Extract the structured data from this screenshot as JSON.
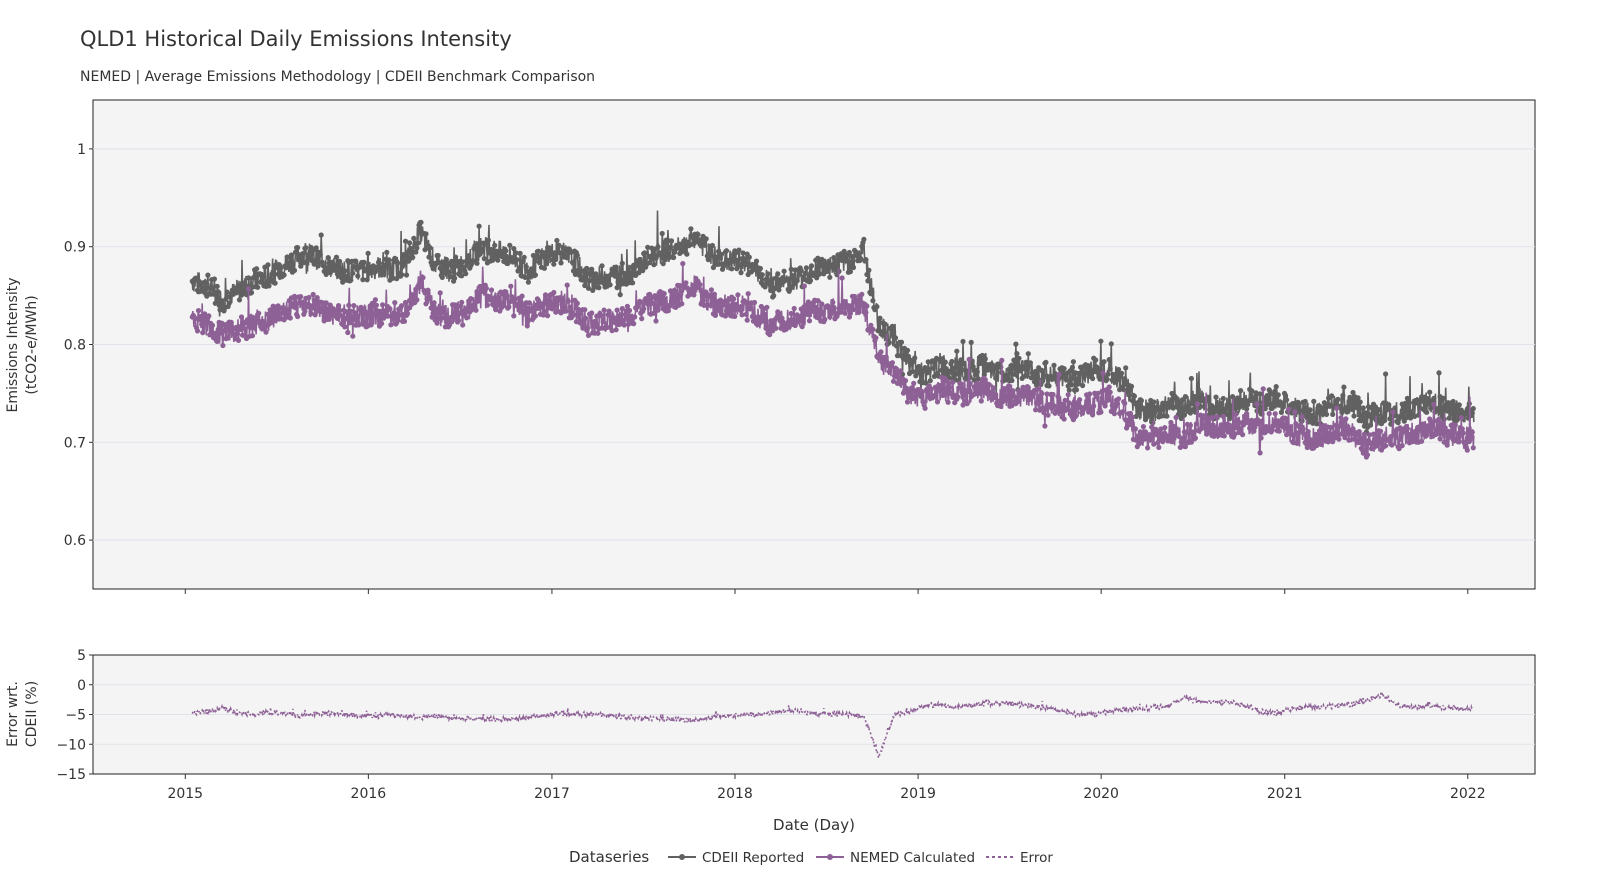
{
  "header": {
    "title": "QLD1 Historical Daily Emissions Intensity",
    "subtitle": "NEMED | Average Emissions Methodology | CDEII Benchmark Comparison"
  },
  "colors": {
    "cdeii": "#616161",
    "nemed": "#8e6196",
    "error": "#8e6196",
    "panel_bg": "#f4f4f4",
    "grid": "#e1e1ea"
  },
  "chart_data": [
    {
      "type": "line",
      "panel": "top",
      "ylabel_line1": "Emissions Intensity",
      "ylabel_line2": "(tCO2-e/MWh)",
      "ylim": [
        0.55,
        1.05
      ],
      "yticks": [
        1,
        0.9,
        0.8,
        0.7,
        0.6
      ],
      "ytick_labels": [
        "1",
        "0.9",
        "0.8",
        "0.7",
        "0.6"
      ],
      "xlim": [
        "2014-07-01",
        "2022-05-15"
      ],
      "grid": true,
      "x": [
        "2015-01",
        "2015-02",
        "2015-03",
        "2015-04",
        "2015-05",
        "2015-06",
        "2015-07",
        "2015-08",
        "2015-09",
        "2015-10",
        "2015-11",
        "2015-12",
        "2016-01",
        "2016-02",
        "2016-03",
        "2016-04",
        "2016-05",
        "2016-06",
        "2016-07",
        "2016-08",
        "2016-09",
        "2016-10",
        "2016-11",
        "2016-12",
        "2017-01",
        "2017-02",
        "2017-03",
        "2017-04",
        "2017-05",
        "2017-06",
        "2017-07",
        "2017-08",
        "2017-09",
        "2017-10",
        "2017-11",
        "2017-12",
        "2018-01",
        "2018-02",
        "2018-03",
        "2018-04",
        "2018-05",
        "2018-06",
        "2018-07",
        "2018-08",
        "2018-09",
        "2018-10",
        "2018-11",
        "2018-12",
        "2019-01",
        "2019-02",
        "2019-03",
        "2019-04",
        "2019-05",
        "2019-06",
        "2019-07",
        "2019-08",
        "2019-09",
        "2019-10",
        "2019-11",
        "2019-12",
        "2020-01",
        "2020-02",
        "2020-03",
        "2020-04",
        "2020-05",
        "2020-06",
        "2020-07",
        "2020-08",
        "2020-09",
        "2020-10",
        "2020-11",
        "2020-12",
        "2021-01",
        "2021-02",
        "2021-03",
        "2021-04",
        "2021-05",
        "2021-06",
        "2021-07",
        "2021-08",
        "2021-09",
        "2021-10",
        "2021-11",
        "2021-12"
      ],
      "series": [
        {
          "name": "CDEII Reported",
          "values": [
            0.865,
            0.86,
            0.845,
            0.855,
            0.865,
            0.87,
            0.88,
            0.89,
            0.89,
            0.88,
            0.875,
            0.875,
            0.88,
            0.875,
            0.885,
            0.915,
            0.88,
            0.875,
            0.885,
            0.9,
            0.895,
            0.89,
            0.875,
            0.89,
            0.895,
            0.885,
            0.865,
            0.87,
            0.87,
            0.875,
            0.89,
            0.895,
            0.9,
            0.91,
            0.89,
            0.885,
            0.885,
            0.875,
            0.86,
            0.865,
            0.87,
            0.88,
            0.88,
            0.885,
            0.895,
            0.82,
            0.805,
            0.78,
            0.77,
            0.78,
            0.775,
            0.77,
            0.78,
            0.77,
            0.775,
            0.77,
            0.77,
            0.765,
            0.765,
            0.775,
            0.775,
            0.76,
            0.735,
            0.73,
            0.74,
            0.735,
            0.745,
            0.735,
            0.735,
            0.745,
            0.74,
            0.745,
            0.735,
            0.73,
            0.73,
            0.74,
            0.74,
            0.725,
            0.73,
            0.73,
            0.735,
            0.74,
            0.735,
            0.73
          ]
        },
        {
          "name": "NEMED Calculated",
          "values": [
            0.825,
            0.82,
            0.81,
            0.815,
            0.82,
            0.825,
            0.835,
            0.84,
            0.84,
            0.83,
            0.83,
            0.83,
            0.83,
            0.83,
            0.835,
            0.865,
            0.83,
            0.83,
            0.835,
            0.85,
            0.845,
            0.84,
            0.83,
            0.84,
            0.845,
            0.835,
            0.82,
            0.825,
            0.825,
            0.83,
            0.84,
            0.845,
            0.85,
            0.86,
            0.84,
            0.84,
            0.84,
            0.83,
            0.82,
            0.825,
            0.83,
            0.835,
            0.835,
            0.84,
            0.84,
            0.785,
            0.77,
            0.75,
            0.745,
            0.755,
            0.75,
            0.75,
            0.755,
            0.745,
            0.75,
            0.745,
            0.74,
            0.735,
            0.735,
            0.74,
            0.745,
            0.73,
            0.705,
            0.705,
            0.71,
            0.705,
            0.72,
            0.715,
            0.715,
            0.72,
            0.715,
            0.72,
            0.71,
            0.705,
            0.705,
            0.715,
            0.71,
            0.695,
            0.705,
            0.705,
            0.71,
            0.715,
            0.71,
            0.705
          ]
        }
      ]
    },
    {
      "type": "line",
      "panel": "bottom",
      "ylabel_line1": "Error wrt.",
      "ylabel_line2": "CDEII (%)",
      "xlabel": "Date (Day)",
      "ylim": [
        -15,
        5
      ],
      "yticks": [
        5,
        0,
        -5,
        -10,
        -15
      ],
      "ytick_labels": [
        "5",
        "0",
        "−5",
        "−10",
        "−15"
      ],
      "xlim": [
        "2014-07-01",
        "2022-05-15"
      ],
      "xticks": [
        "2015-01-01",
        "2016-01-01",
        "2017-01-01",
        "2018-01-01",
        "2019-01-01",
        "2020-01-01",
        "2021-01-01",
        "2022-01-01"
      ],
      "xtick_labels": [
        "2015",
        "2016",
        "2017",
        "2018",
        "2019",
        "2020",
        "2021",
        "2022"
      ],
      "grid": true,
      "x": [
        "2015-01",
        "2015-02",
        "2015-03",
        "2015-04",
        "2015-05",
        "2015-06",
        "2015-07",
        "2015-08",
        "2015-09",
        "2015-10",
        "2015-11",
        "2015-12",
        "2016-01",
        "2016-02",
        "2016-03",
        "2016-04",
        "2016-05",
        "2016-06",
        "2016-07",
        "2016-08",
        "2016-09",
        "2016-10",
        "2016-11",
        "2016-12",
        "2017-01",
        "2017-02",
        "2017-03",
        "2017-04",
        "2017-05",
        "2017-06",
        "2017-07",
        "2017-08",
        "2017-09",
        "2017-10",
        "2017-11",
        "2017-12",
        "2018-01",
        "2018-02",
        "2018-03",
        "2018-04",
        "2018-05",
        "2018-06",
        "2018-07",
        "2018-08",
        "2018-09",
        "2018-10",
        "2018-11",
        "2018-12",
        "2019-01",
        "2019-02",
        "2019-03",
        "2019-04",
        "2019-05",
        "2019-06",
        "2019-07",
        "2019-08",
        "2019-09",
        "2019-10",
        "2019-11",
        "2019-12",
        "2020-01",
        "2020-02",
        "2020-03",
        "2020-04",
        "2020-05",
        "2020-06",
        "2020-07",
        "2020-08",
        "2020-09",
        "2020-10",
        "2020-11",
        "2020-12",
        "2021-01",
        "2021-02",
        "2021-03",
        "2021-04",
        "2021-05",
        "2021-06",
        "2021-07",
        "2021-08",
        "2021-09",
        "2021-10",
        "2021-11",
        "2021-12"
      ],
      "series": [
        {
          "name": "Error",
          "values": [
            -4.8,
            -4.5,
            -4.0,
            -4.7,
            -5.0,
            -4.6,
            -4.8,
            -5.2,
            -5.0,
            -4.7,
            -5.0,
            -5.2,
            -5.3,
            -5.0,
            -5.3,
            -5.5,
            -5.2,
            -5.6,
            -5.6,
            -5.8,
            -5.7,
            -5.9,
            -5.5,
            -5.2,
            -4.8,
            -5.0,
            -5.0,
            -5.0,
            -5.3,
            -5.5,
            -5.6,
            -5.7,
            -5.9,
            -6.0,
            -5.5,
            -5.2,
            -5.0,
            -5.0,
            -4.7,
            -4.3,
            -4.6,
            -4.8,
            -5.0,
            -5.0,
            -5.4,
            -12.0,
            -5.0,
            -4.5,
            -3.5,
            -3.3,
            -3.8,
            -3.5,
            -3.2,
            -3.0,
            -3.3,
            -3.5,
            -4.0,
            -4.5,
            -5.0,
            -5.0,
            -4.5,
            -4.2,
            -4.0,
            -3.8,
            -3.6,
            -2.0,
            -2.8,
            -3.0,
            -3.0,
            -3.5,
            -4.5,
            -4.8,
            -4.0,
            -3.8,
            -3.8,
            -3.5,
            -3.3,
            -2.5,
            -1.8,
            -3.5,
            -3.8,
            -3.6,
            -3.8,
            -4.0
          ]
        }
      ]
    }
  ],
  "legend": {
    "title": "Dataseries",
    "items": [
      "CDEII Reported",
      "NEMED Calculated",
      "Error"
    ]
  }
}
